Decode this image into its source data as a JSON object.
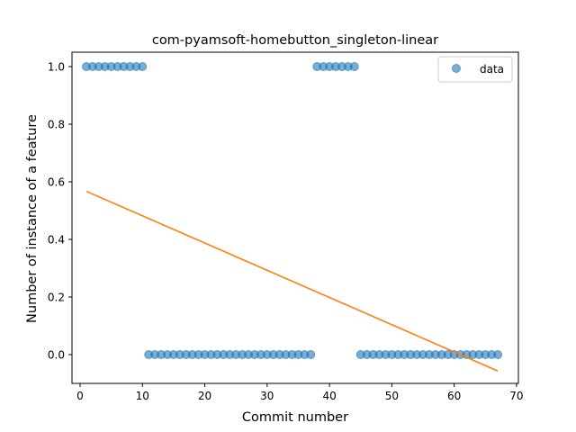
{
  "chart_data": {
    "type": "scatter",
    "title": "com-pyamsoft-homebutton_singleton-linear",
    "xlabel": "Commit number",
    "ylabel": "Number of instance of a feature",
    "xlim": [
      -1.3,
      70.3
    ],
    "ylim": [
      -0.1,
      1.05
    ],
    "x_ticks": [
      0,
      10,
      20,
      30,
      40,
      50,
      60,
      70
    ],
    "y_ticks": [
      0.0,
      0.2,
      0.4,
      0.6,
      0.8,
      1.0
    ],
    "x_tick_labels": [
      "0",
      "10",
      "20",
      "30",
      "40",
      "50",
      "60",
      "70"
    ],
    "y_tick_labels": [
      "0.0",
      "0.2",
      "0.4",
      "0.6",
      "0.8",
      "1.0"
    ],
    "grid": false,
    "legend_position": "top-right",
    "series": [
      {
        "name": "data",
        "kind": "scatter",
        "color": "#1f77b4",
        "x": [
          1,
          2,
          3,
          4,
          5,
          6,
          7,
          8,
          9,
          10,
          11,
          12,
          13,
          14,
          15,
          16,
          17,
          18,
          19,
          20,
          21,
          22,
          23,
          24,
          25,
          26,
          27,
          28,
          29,
          30,
          31,
          32,
          33,
          34,
          35,
          36,
          37,
          38,
          39,
          40,
          41,
          42,
          43,
          44,
          45,
          46,
          47,
          48,
          49,
          50,
          51,
          52,
          53,
          54,
          55,
          56,
          57,
          58,
          59,
          60,
          61,
          62,
          63,
          64,
          65,
          66,
          67
        ],
        "y": [
          1,
          1,
          1,
          1,
          1,
          1,
          1,
          1,
          1,
          1,
          0,
          0,
          0,
          0,
          0,
          0,
          0,
          0,
          0,
          0,
          0,
          0,
          0,
          0,
          0,
          0,
          0,
          0,
          0,
          0,
          0,
          0,
          0,
          0,
          0,
          0,
          0,
          1,
          1,
          1,
          1,
          1,
          1,
          1,
          0,
          0,
          0,
          0,
          0,
          0,
          0,
          0,
          0,
          0,
          0,
          0,
          0,
          0,
          0,
          0,
          0,
          0,
          0,
          0,
          0,
          0,
          0
        ]
      },
      {
        "kind": "line",
        "color": "#ff7f0e",
        "x": [
          1,
          67
        ],
        "y": [
          0.567,
          -0.057
        ]
      }
    ]
  }
}
